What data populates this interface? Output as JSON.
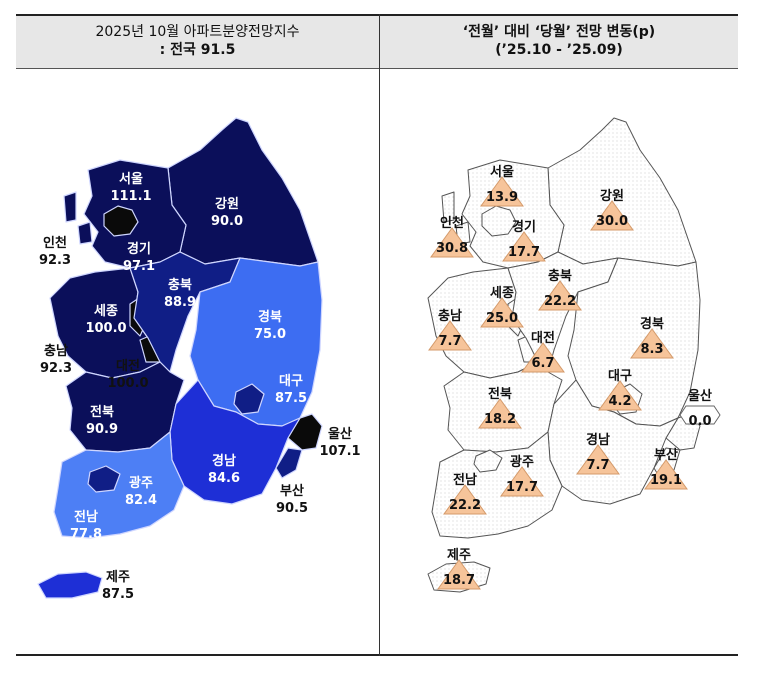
{
  "left_panel": {
    "title_line1": "2025년 10월 아파트분양전망지수",
    "title_line2": ": 전국 91.5",
    "regions": [
      {
        "name": "서울",
        "value": "111.1"
      },
      {
        "name": "경기",
        "value": "97.1"
      },
      {
        "name": "인천",
        "value": "92.3"
      },
      {
        "name": "강원",
        "value": "90.0"
      },
      {
        "name": "충북",
        "value": "88.9"
      },
      {
        "name": "세종",
        "value": "100.0"
      },
      {
        "name": "충남",
        "value": "92.3"
      },
      {
        "name": "대전",
        "value": "100.0"
      },
      {
        "name": "경북",
        "value": "75.0"
      },
      {
        "name": "대구",
        "value": "87.5"
      },
      {
        "name": "전북",
        "value": "90.9"
      },
      {
        "name": "울산",
        "value": "107.1"
      },
      {
        "name": "광주",
        "value": "82.4"
      },
      {
        "name": "경남",
        "value": "84.6"
      },
      {
        "name": "부산",
        "value": "90.5"
      },
      {
        "name": "전남",
        "value": "77.8"
      },
      {
        "name": "제주",
        "value": "87.5"
      }
    ]
  },
  "right_panel": {
    "title_line1": "‘전월’ 대비 ‘당월’ 전망 변동(p)",
    "title_line2": "(’25.10 - ’25.09)",
    "regions": [
      {
        "name": "서울",
        "value": "13.9",
        "dir": "up"
      },
      {
        "name": "강원",
        "value": "30.0",
        "dir": "up"
      },
      {
        "name": "인천",
        "value": "30.8",
        "dir": "up"
      },
      {
        "name": "경기",
        "value": "17.7",
        "dir": "up"
      },
      {
        "name": "충북",
        "value": "22.2",
        "dir": "up"
      },
      {
        "name": "세종",
        "value": "25.0",
        "dir": "up"
      },
      {
        "name": "충남",
        "value": "7.7",
        "dir": "up"
      },
      {
        "name": "대전",
        "value": "6.7",
        "dir": "up"
      },
      {
        "name": "경북",
        "value": "8.3",
        "dir": "up"
      },
      {
        "name": "대구",
        "value": "4.2",
        "dir": "up"
      },
      {
        "name": "울산",
        "value": "0.0",
        "dir": "flat"
      },
      {
        "name": "전북",
        "value": "18.2",
        "dir": "up"
      },
      {
        "name": "광주",
        "value": "17.7",
        "dir": "up"
      },
      {
        "name": "경남",
        "value": "7.7",
        "dir": "up"
      },
      {
        "name": "부산",
        "value": "19.1",
        "dir": "up"
      },
      {
        "name": "전남",
        "value": "22.2",
        "dir": "up"
      },
      {
        "name": "제주",
        "value": "18.7",
        "dir": "up"
      }
    ]
  },
  "colors": {
    "darkest": "#0b0f5a",
    "dark": "#101e86",
    "mid": "#1e2fd6",
    "light": "#3d6df2",
    "lighter": "#4d7ff5",
    "black": "#0a0a0a",
    "triangle": "#f6c49a",
    "triangle_stroke": "#d49a6a"
  }
}
